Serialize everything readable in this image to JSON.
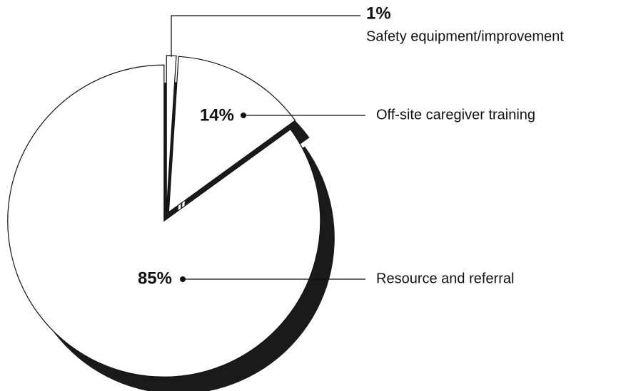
{
  "chart_data": {
    "type": "pie",
    "categories": [
      "Safety equipment/improvement",
      "Off-site caregiver training",
      "Resource and referral"
    ],
    "values": [
      1,
      14,
      85
    ],
    "value_labels": [
      "1%",
      "14%",
      "85%"
    ],
    "color": "#ffffff"
  }
}
